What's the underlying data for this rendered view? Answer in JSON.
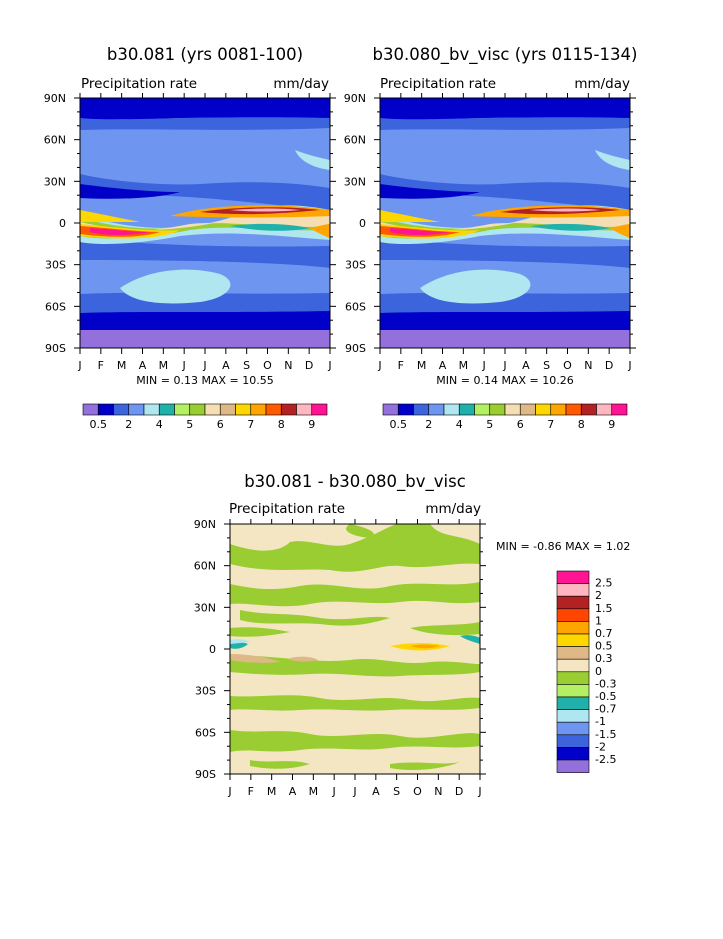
{
  "panels": [
    {
      "title": "b30.081 (yrs 0081-100)",
      "subtitle": "Precipitation rate",
      "units": "mm/day",
      "minmax_label": "MIN =    0.13 MAX =   10.55",
      "min": 0.13,
      "max": 10.55
    },
    {
      "title": "b30.080_bv_visc (yrs 0115-134)",
      "subtitle": "Precipitation rate",
      "units": "mm/day",
      "minmax_label": "MIN =    0.14 MAX =   10.26",
      "min": 0.14,
      "max": 10.26
    },
    {
      "title": "b30.081 - b30.080_bv_visc",
      "subtitle": "Precipitation rate",
      "units": "mm/day",
      "minmax_label": "MIN =  -0.86 MAX =    1.02",
      "min": -0.86,
      "max": 1.02
    }
  ],
  "chart_data": [
    {
      "type": "heatmap",
      "title": "b30.081 (yrs 0081-100)",
      "subtitle": "Precipitation rate (mm/day)",
      "x_ticks": [
        "J",
        "F",
        "M",
        "A",
        "M",
        "J",
        "J",
        "A",
        "S",
        "O",
        "N",
        "D",
        "J"
      ],
      "y_ticks": [
        "90N",
        "60N",
        "30N",
        "0",
        "30S",
        "60S",
        "90S"
      ],
      "ylim": [
        -90,
        90
      ],
      "levels": [
        0.5,
        1,
        1.5,
        2,
        3,
        4,
        4.5,
        5,
        6,
        6.5,
        7,
        7.5,
        8,
        9
      ],
      "colorbar_labels": [
        "0.5",
        "2",
        "4",
        "5",
        "6",
        "7",
        "8",
        "9"
      ],
      "min": 0.13,
      "max": 10.55
    },
    {
      "type": "heatmap",
      "title": "b30.080_bv_visc (yrs 0115-134)",
      "subtitle": "Precipitation rate (mm/day)",
      "x_ticks": [
        "J",
        "F",
        "M",
        "A",
        "M",
        "J",
        "J",
        "A",
        "S",
        "O",
        "N",
        "D",
        "J"
      ],
      "y_ticks": [
        "90N",
        "60N",
        "30N",
        "0",
        "30S",
        "60S",
        "90S"
      ],
      "ylim": [
        -90,
        90
      ],
      "levels": [
        0.5,
        1,
        1.5,
        2,
        3,
        4,
        4.5,
        5,
        6,
        6.5,
        7,
        7.5,
        8,
        9
      ],
      "colorbar_labels": [
        "0.5",
        "2",
        "4",
        "5",
        "6",
        "7",
        "8",
        "9"
      ],
      "min": 0.14,
      "max": 10.26
    },
    {
      "type": "heatmap",
      "title": "b30.081 - b30.080_bv_visc",
      "subtitle": "Precipitation rate (mm/day)",
      "x_ticks": [
        "J",
        "F",
        "M",
        "A",
        "M",
        "J",
        "J",
        "A",
        "S",
        "O",
        "N",
        "D",
        "J"
      ],
      "y_ticks": [
        "90N",
        "60N",
        "30N",
        "0",
        "30S",
        "60S",
        "90S"
      ],
      "ylim": [
        -90,
        90
      ],
      "levels": [
        2.5,
        2,
        1.5,
        1,
        0.7,
        0.5,
        0.3,
        0,
        -0.3,
        -0.5,
        -0.7,
        -1,
        -1.5,
        -2,
        -2.5
      ],
      "colorbar_labels": [
        "2.5",
        "2",
        "1.5",
        "1",
        "0.7",
        "0.5",
        "0.3",
        "0",
        "-0.3",
        "-0.5",
        "-0.7",
        "-1",
        "-1.5",
        "-2",
        "-2.5"
      ],
      "min": -0.86,
      "max": 1.02
    }
  ],
  "colors": {
    "abs_palette": [
      "#9370db",
      "#0000c8",
      "#3c64dc",
      "#6e96f0",
      "#afe6f0",
      "#20b2aa",
      "#b4f064",
      "#9acd32",
      "#f5deb3",
      "#deb887",
      "#ffd700",
      "#ffa500",
      "#ff5a00",
      "#b22222",
      "#ffb6c1",
      "#ff1493"
    ],
    "diff_palette": [
      "#ff1493",
      "#ffb6c1",
      "#b22222",
      "#ff4500",
      "#ffa500",
      "#ffd700",
      "#deb887",
      "#f5e6c3",
      "#9acd32",
      "#b4f064",
      "#20b2aa",
      "#afe6f0",
      "#6e96f0",
      "#3c64dc",
      "#0000c8",
      "#9370db"
    ]
  }
}
